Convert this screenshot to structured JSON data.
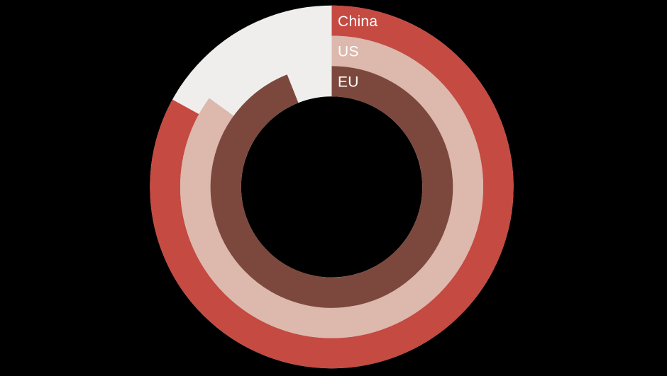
{
  "chart_data": {
    "type": "pie",
    "variant": "concentric-donut",
    "title": "",
    "start_angle_deg": 0,
    "sweep_direction": "clockwise",
    "rings": [
      {
        "id": "china",
        "label": "China",
        "value_pct": 83,
        "color": "#c44a42",
        "position": "outer"
      },
      {
        "id": "us",
        "label": "US",
        "value_pct": 85,
        "color": "#dcb8ad",
        "position": "middle"
      },
      {
        "id": "eu",
        "label": "EU",
        "value_pct": 94,
        "color": "#7c483d",
        "position": "inner"
      }
    ],
    "remainder_color": "#efeeed",
    "background_color": "#000000",
    "label_color": "#ffffff",
    "legend_position": "labels-inside-rings-at-top",
    "axes": "none",
    "grid": false
  }
}
